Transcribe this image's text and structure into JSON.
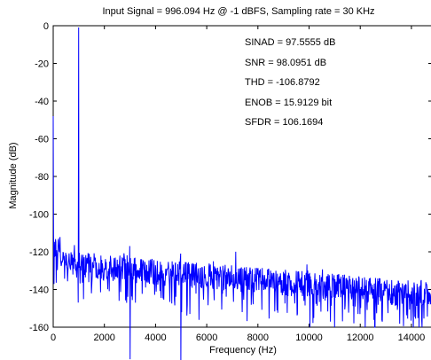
{
  "chart_data": {
    "type": "line",
    "title": "Input Signal = 996.094 Hz @ -1 dBFS, Sampling rate = 30 KHz",
    "xlabel": "Frequency (Hz)",
    "ylabel": "Magnitude (dB)",
    "xlim": [
      0,
      14800
    ],
    "ylim": [
      -160,
      0
    ],
    "grid": false,
    "xticks": [
      0,
      2000,
      4000,
      6000,
      8000,
      10000,
      12000,
      14000
    ],
    "xtick_labels": [
      "0",
      "2000",
      "4000",
      "6000",
      "8000",
      "10000",
      "12000",
      "14000"
    ],
    "yticks": [
      0,
      -20,
      -40,
      -60,
      -80,
      -100,
      -120,
      -140,
      -160
    ],
    "ytick_labels": [
      "0",
      "-20",
      "-40",
      "-60",
      "-80",
      "-100",
      "-120",
      "-140",
      "-160"
    ],
    "line_color": "#0000ff",
    "annotations": [
      "SINAD = 97.5555 dB",
      "SNR = 98.0951 dB",
      "THD = -106.8792",
      "ENOB = 15.9129 bit",
      "SFDR = 106.1694"
    ],
    "series": [
      {
        "noise_floor_start_db": -126,
        "noise_floor_end_db": -143,
        "peaks": [
          {
            "x": 0,
            "y": -48
          },
          {
            "x": 996.094,
            "y": -1
          },
          {
            "x": 2992,
            "y": -117
          },
          {
            "x": 4980,
            "y": -121
          }
        ]
      }
    ]
  }
}
